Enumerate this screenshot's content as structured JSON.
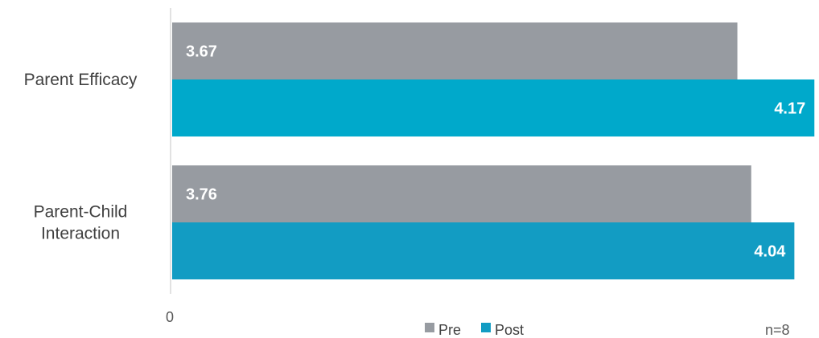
{
  "chart_data": {
    "type": "bar",
    "orientation": "horizontal",
    "categories": [
      [
        "Parent Efficacy"
      ],
      [
        "Parent-Child",
        "Interaction"
      ]
    ],
    "series": [
      {
        "name": "Pre",
        "values": [
          3.67,
          3.76
        ],
        "color": "#979ba1"
      },
      {
        "name": "Post",
        "values": [
          4.17,
          4.04
        ],
        "colors": [
          "#00a9cb",
          "#129cc3"
        ]
      }
    ],
    "data_labels": [
      [
        "3.67",
        "3.76"
      ],
      [
        "4.17",
        "4.04"
      ]
    ],
    "xlim": [
      0,
      4.2
    ],
    "x_tick_labels": [
      "0"
    ],
    "xlabel": "",
    "ylabel": "",
    "title": "",
    "grid": false,
    "legend": {
      "position": "bottom",
      "entries": [
        "Pre",
        "Post"
      ]
    },
    "annotation": "n=8"
  }
}
